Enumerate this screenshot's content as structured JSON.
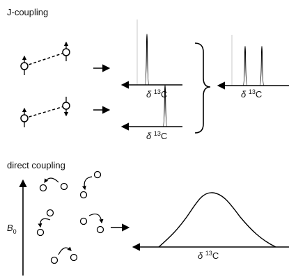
{
  "j_coupling": {
    "title": "J-coupling",
    "spectra": [
      {
        "axis_label": {
          "symbol": "δ",
          "mass": "13",
          "element": "C"
        }
      },
      {
        "axis_label": {
          "symbol": "δ",
          "mass": "13",
          "element": "C"
        }
      },
      {
        "axis_label": {
          "symbol": "δ",
          "mass": "13",
          "element": "C"
        }
      }
    ]
  },
  "direct_coupling": {
    "title": "direct coupling",
    "field_label": {
      "symbol": "B",
      "subscript": "0"
    },
    "spectrum": {
      "axis_label": {
        "symbol": "δ",
        "mass": "13",
        "element": "C"
      }
    }
  }
}
